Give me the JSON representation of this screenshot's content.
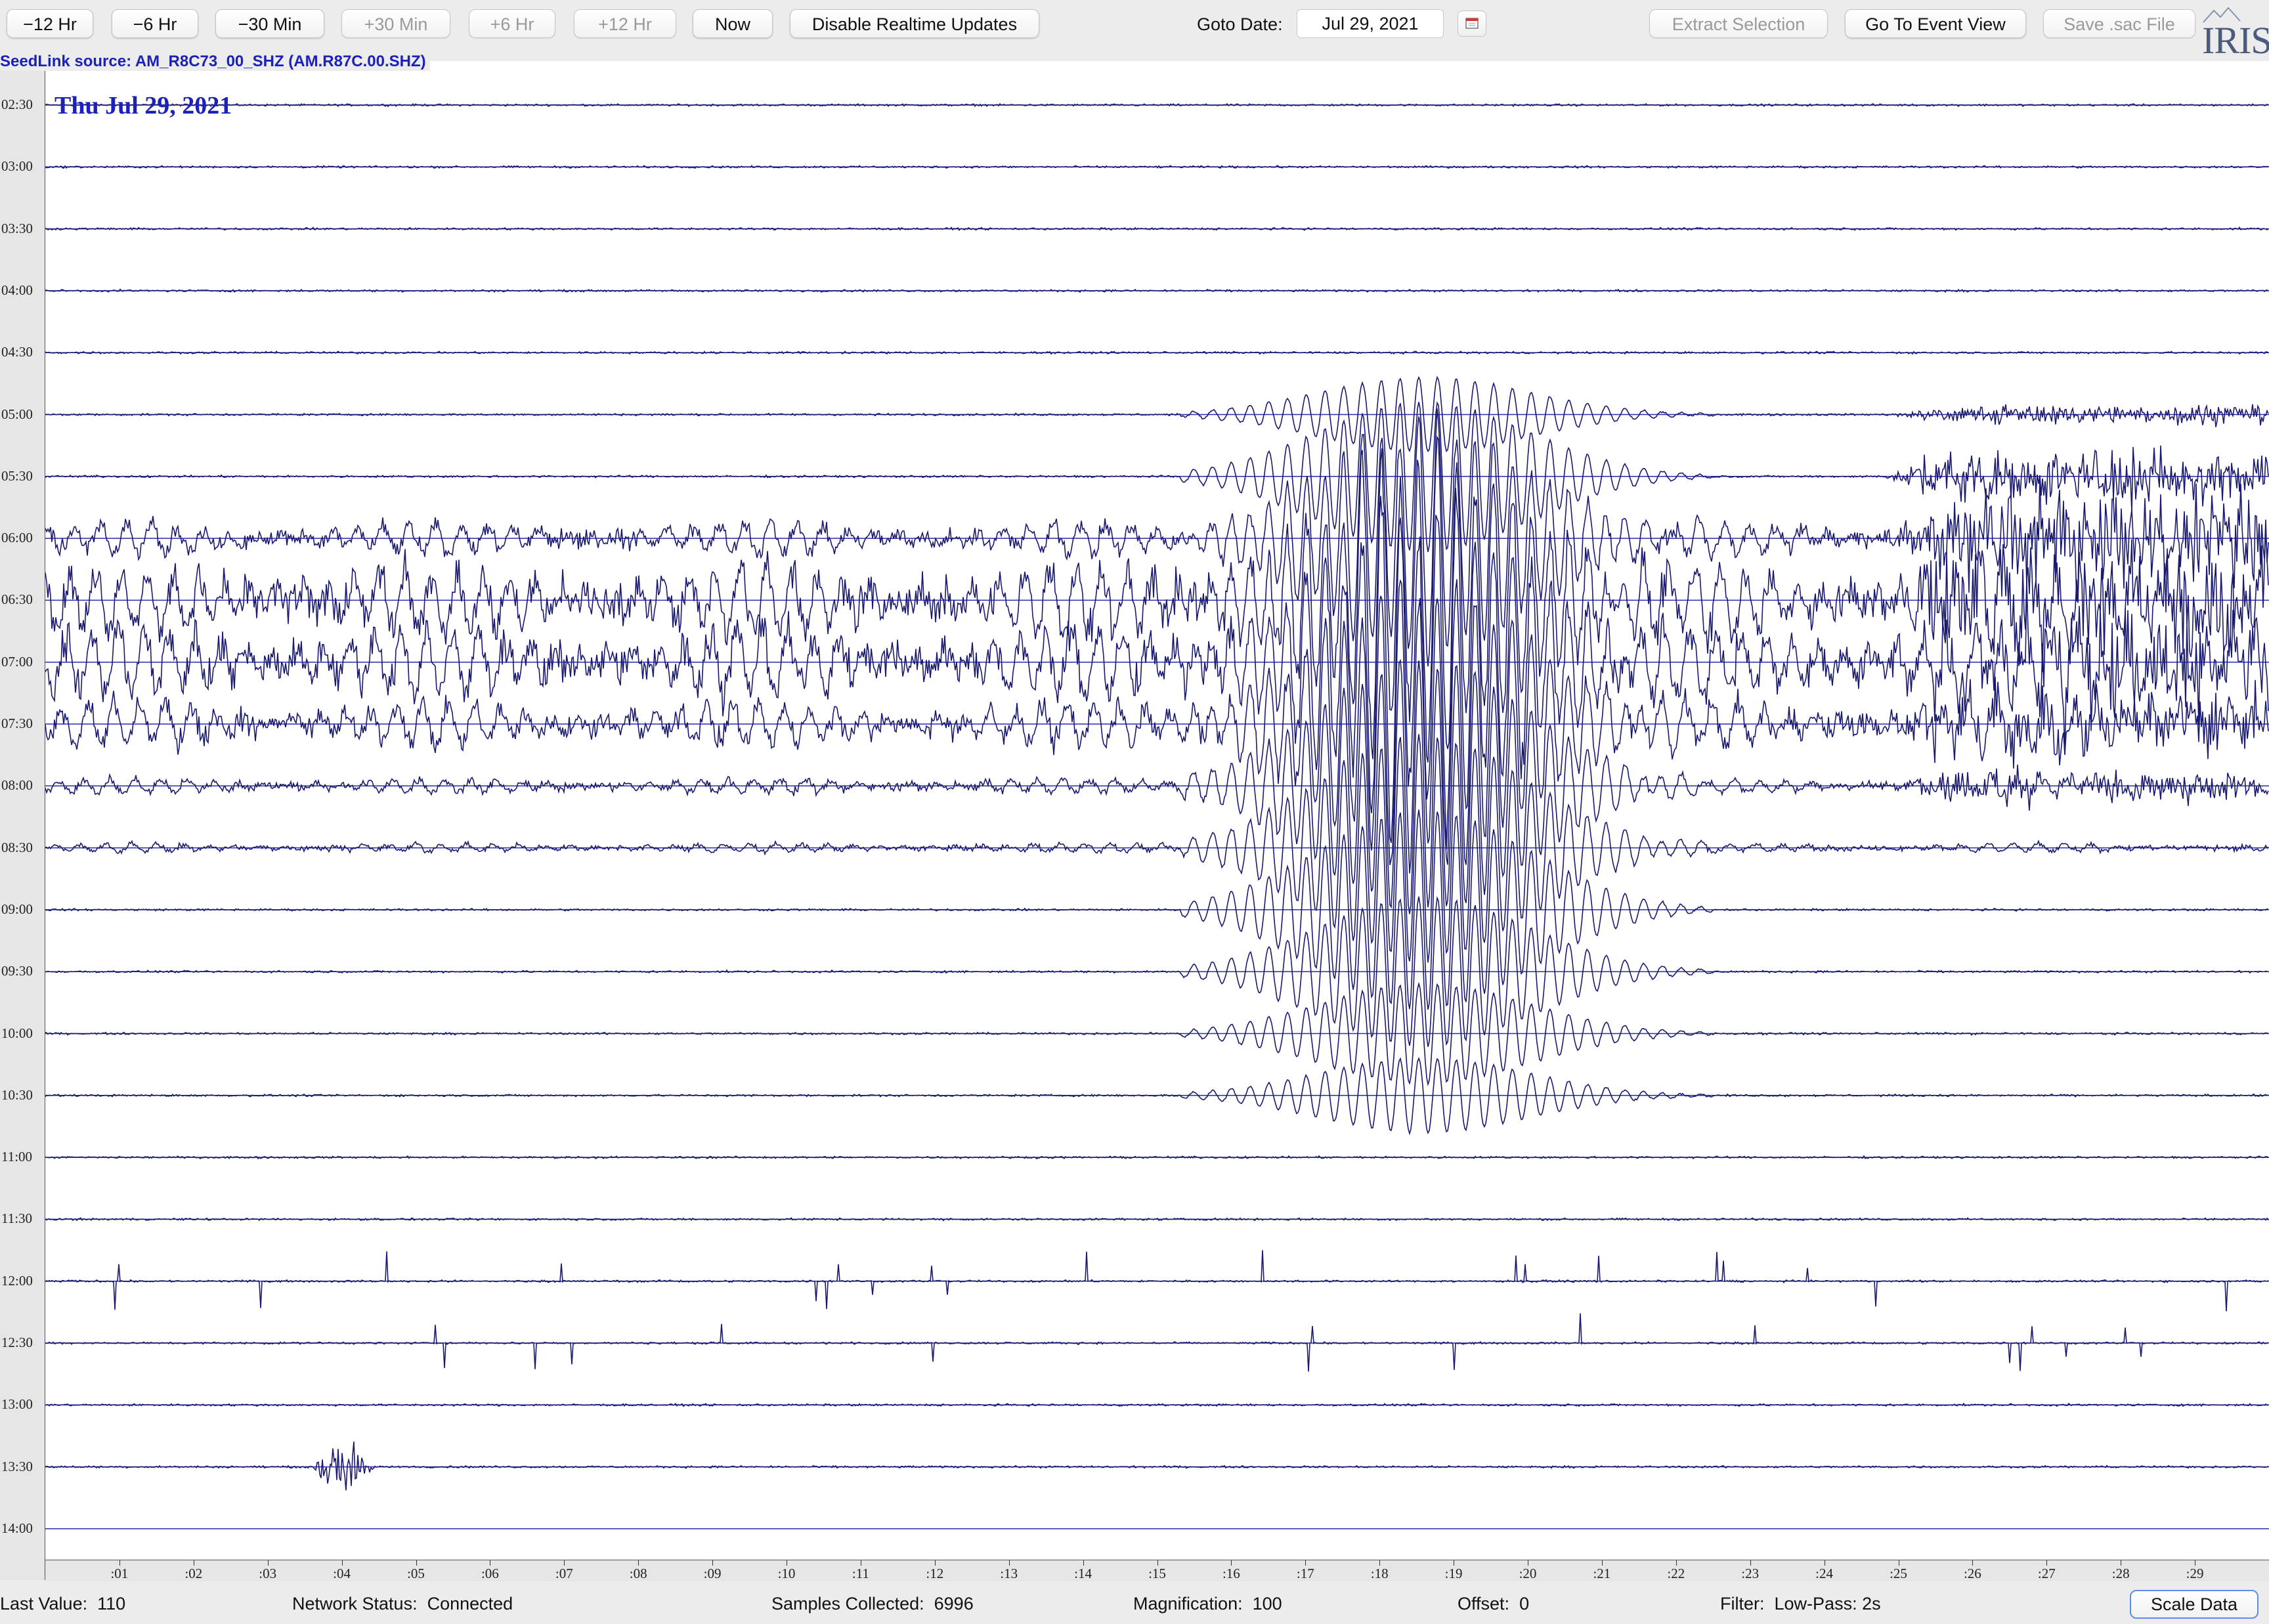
{
  "toolbar": {
    "minus_12hr": "−12 Hr",
    "minus_6hr": "−6 Hr",
    "minus_30min": "−30 Min",
    "plus_30min": "+30 Min",
    "plus_6hr": "+6 Hr",
    "plus_12hr": "+12 Hr",
    "now": "Now",
    "disable_realtime": "Disable Realtime Updates",
    "goto_date_label": "Goto Date:",
    "goto_date_value": "Jul 29, 2021",
    "extract_selection": "Extract Selection",
    "go_to_event_view": "Go To Event View",
    "save_sac_file": "Save .sac File",
    "logo_text": "IRIS"
  },
  "panel": {
    "source_label": "SeedLink source: AM_R8C73_00_SHZ (AM.R87C.00.SHZ)",
    "date_overlay": "Thu Jul 29, 2021"
  },
  "rows": [
    "02:30",
    "03:00",
    "03:30",
    "04:00",
    "04:30",
    "05:00",
    "05:30",
    "06:00",
    "06:30",
    "07:00",
    "07:30",
    "08:00",
    "08:30",
    "09:00",
    "09:30",
    "10:00",
    "10:30",
    "11:00",
    "11:30",
    "12:00",
    "12:30",
    "13:00",
    "13:30",
    "14:00"
  ],
  "x_ticks": [
    ":01",
    ":02",
    ":03",
    ":04",
    ":05",
    ":06",
    ":07",
    ":08",
    ":09",
    ":10",
    ":11",
    ":12",
    ":13",
    ":14",
    ":15",
    ":16",
    ":17",
    ":18",
    ":19",
    ":20",
    ":21",
    ":22",
    ":23",
    ":24",
    ":25",
    ":26",
    ":27",
    ":28",
    ":29"
  ],
  "status": {
    "last_value_label": "Last Value:",
    "last_value": "110",
    "network_status_label": "Network Status:",
    "network_status": "Connected",
    "samples_label": "Samples Collected:",
    "samples": "6996",
    "magnification_label": "Magnification:",
    "magnification": "100",
    "offset_label": "Offset:",
    "offset": "0",
    "filter_label": "Filter:",
    "filter": "Low-Pass: 2s",
    "scale_data": "Scale Data"
  },
  "colors": {
    "trace": "#1a1a6e",
    "accent_text": "#1c22b8",
    "baseline": "#2a2ab0"
  }
}
